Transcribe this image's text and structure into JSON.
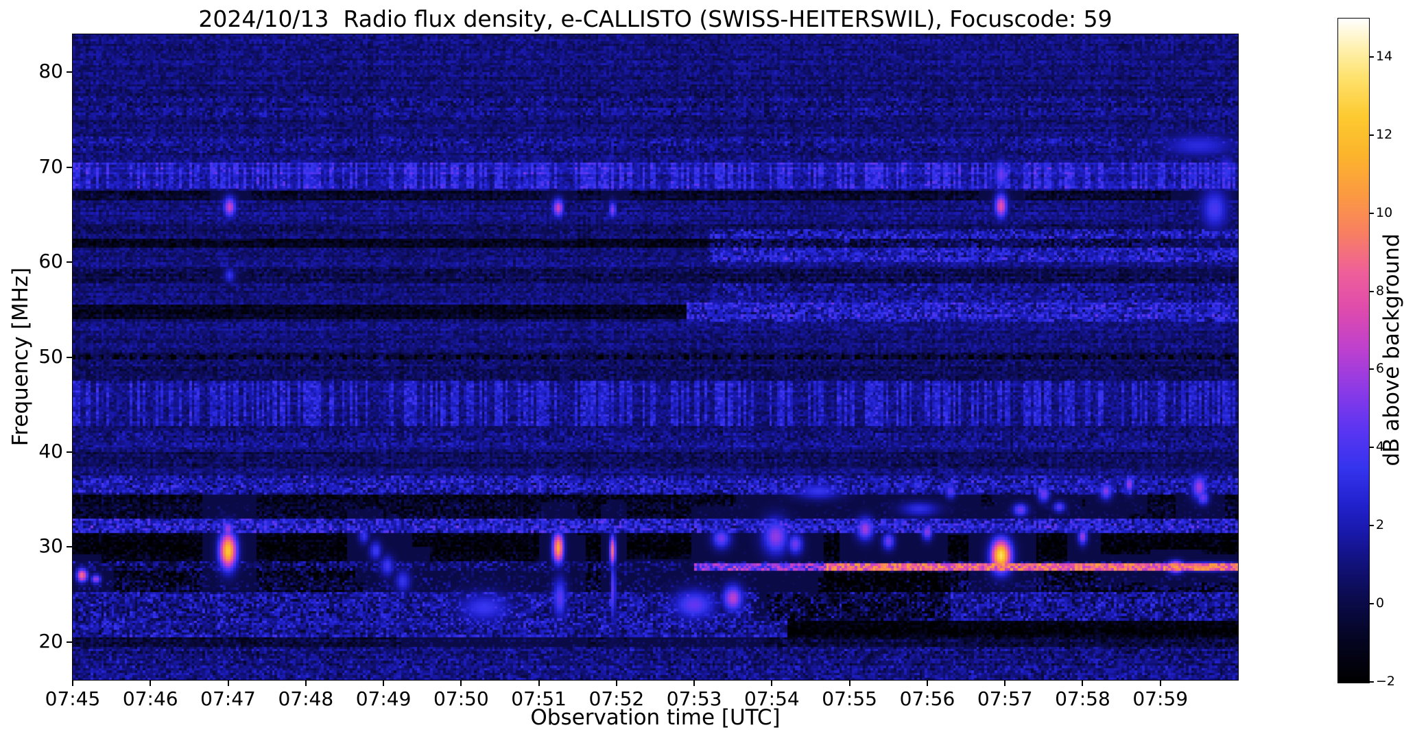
{
  "chart_data": {
    "type": "heatmap",
    "title": "2024/10/13  Radio flux density, e-CALLISTO (SWISS-HEITERSWIL), Focuscode: 59",
    "xlabel": "Observation time [UTC]",
    "ylabel": "Frequency [MHz]",
    "x_ticks": [
      "07:45",
      "07:46",
      "07:47",
      "07:48",
      "07:49",
      "07:50",
      "07:51",
      "07:52",
      "07:53",
      "07:54",
      "07:55",
      "07:56",
      "07:57",
      "07:58",
      "07:59"
    ],
    "x_range_minutes": [
      0,
      15
    ],
    "y_ticks": [
      20,
      30,
      40,
      50,
      60,
      70,
      80
    ],
    "y_range_mhz": [
      16,
      84
    ],
    "grid": {
      "cols": 450,
      "rows": 272
    },
    "colorbar": {
      "label": "dB above background",
      "ticks": [
        -2,
        0,
        2,
        4,
        6,
        8,
        10,
        12,
        14
      ],
      "vmin": -2,
      "vmax": 15,
      "stops": [
        {
          "v": -2,
          "c": "#000000"
        },
        {
          "v": -1,
          "c": "#04041e"
        },
        {
          "v": 0,
          "c": "#0a0a46"
        },
        {
          "v": 1,
          "c": "#111178"
        },
        {
          "v": 1.8,
          "c": "#1818a8"
        },
        {
          "v": 2.6,
          "c": "#2222cf"
        },
        {
          "v": 3.5,
          "c": "#3534ee"
        },
        {
          "v": 4.5,
          "c": "#5c35f2"
        },
        {
          "v": 5.5,
          "c": "#8c3ae6"
        },
        {
          "v": 6.5,
          "c": "#bc40cf"
        },
        {
          "v": 7.5,
          "c": "#dd4aae"
        },
        {
          "v": 8.5,
          "c": "#ee5f99"
        },
        {
          "v": 9.5,
          "c": "#f87f62"
        },
        {
          "v": 10.5,
          "c": "#fb9a41"
        },
        {
          "v": 11.5,
          "c": "#fcb42c"
        },
        {
          "v": 12.5,
          "c": "#fdca30"
        },
        {
          "v": 13.5,
          "c": "#fee26e"
        },
        {
          "v": 14.3,
          "c": "#fff2b5"
        },
        {
          "v": 15,
          "c": "#ffffff"
        }
      ]
    },
    "background": {
      "base_db": 1.0,
      "noise_db": 1.7,
      "row_noise_db": 0.8,
      "col_noise_db": 0.4,
      "seed": 42
    },
    "bands": [
      {
        "f1": 67.8,
        "f2": 70.6,
        "v": 1.2,
        "n": 1.3,
        "dash": true
      },
      {
        "f1": 66.6,
        "f2": 67.6,
        "v": -1.7,
        "n": 0.4
      },
      {
        "f1": 63.0,
        "f2": 64.0,
        "v": -0.6,
        "n": 0.4
      },
      {
        "f1": 61.4,
        "f2": 62.6,
        "v": -2.3,
        "n": 0.4
      },
      {
        "f1": 57.8,
        "f2": 59.2,
        "v": -0.9,
        "n": 0.5
      },
      {
        "f1": 54.0,
        "f2": 55.6,
        "v": -2.0,
        "n": 0.4,
        "t2": 7.9
      },
      {
        "f1": 53.8,
        "f2": 55.8,
        "v": 1.4,
        "n": 1.5,
        "t1": 7.9
      },
      {
        "f1": 60.0,
        "f2": 63.6,
        "v": 1.3,
        "n": 1.4,
        "t1": 8.2
      },
      {
        "f1": 55.8,
        "f2": 57.8,
        "v": 0.5,
        "n": 1.0,
        "t1": 8.2
      },
      {
        "f1": 49.6,
        "f2": 50.4,
        "v": -0.7,
        "n": 0.5
      },
      {
        "f1": 47.6,
        "f2": 49.4,
        "v": -0.5,
        "n": 0.4
      },
      {
        "f1": 42.8,
        "f2": 47.6,
        "v": 0.6,
        "n": 1.2,
        "dash": true
      },
      {
        "f1": 40.6,
        "f2": 42.2,
        "v": 0.2,
        "n": 0.8
      },
      {
        "f1": 38.4,
        "f2": 40.0,
        "v": -0.7,
        "n": 0.4
      },
      {
        "f1": 35.4,
        "f2": 37.4,
        "v": 0.8,
        "n": 1.5
      },
      {
        "f1": 33.0,
        "f2": 35.4,
        "v": -1.9,
        "n": 1.0
      },
      {
        "f1": 31.6,
        "f2": 33.0,
        "v": 1.4,
        "n": 1.7
      },
      {
        "f1": 28.4,
        "f2": 31.6,
        "v": -2.6,
        "n": 0.9
      },
      {
        "f1": 27.4,
        "f2": 28.4,
        "v": -0.5,
        "n": 1.8
      },
      {
        "f1": 27.5,
        "f2": 28.3,
        "v": 5.0,
        "n": 1.5,
        "t1": 8.0,
        "t2": 9.7
      },
      {
        "f1": 25.2,
        "f2": 27.4,
        "v": -1.6,
        "n": 1.8
      },
      {
        "f1": 22.2,
        "f2": 25.2,
        "v": 0.5,
        "n": 1.6
      },
      {
        "f1": 22.3,
        "f2": 27.2,
        "v": -1.6,
        "n": 1.2,
        "t1": 8.8,
        "t2": 11.3
      },
      {
        "f1": 20.6,
        "f2": 22.2,
        "v": 0.7,
        "n": 1.5,
        "t2": 9.2
      },
      {
        "f1": 20.6,
        "f2": 22.2,
        "v": -2.6,
        "n": 0.5,
        "t1": 9.2
      },
      {
        "f1": 19.4,
        "f2": 20.6,
        "v": -1.3,
        "n": 0.6
      },
      {
        "f1": 16.0,
        "f2": 19.4,
        "v": 0.1,
        "n": 1.0
      },
      {
        "f1": 71.4,
        "f2": 73.2,
        "v": 0.3,
        "n": 0.9
      },
      {
        "f1": 75.2,
        "f2": 77.4,
        "v": 0.15,
        "n": 0.8
      }
    ],
    "tick_row_50mhz": {
      "f1": 49.7,
      "f2": 50.3,
      "period_s": 11,
      "width_s": 2.5,
      "v": -3.0
    },
    "bright_line": {
      "f1": 27.6,
      "f2": 28.3,
      "t1": 9.7,
      "t2": 15.0,
      "v": 8.5,
      "n": 2.5
    },
    "blobs": [
      {
        "t": 0.12,
        "f": 27.0,
        "dt": 0.07,
        "df": 0.7,
        "v": 9
      },
      {
        "t": 0.3,
        "f": 26.6,
        "dt": 0.06,
        "df": 0.5,
        "v": 6
      },
      {
        "t": 2.0,
        "f": 29.6,
        "dt": 0.11,
        "df": 1.9,
        "v": 12.5
      },
      {
        "t": 2.0,
        "f": 31.9,
        "dt": 0.08,
        "df": 0.9,
        "v": 6
      },
      {
        "t": 2.02,
        "f": 65.8,
        "dt": 0.08,
        "df": 1.1,
        "v": 7
      },
      {
        "t": 2.02,
        "f": 58.6,
        "dt": 0.07,
        "df": 0.8,
        "v": 3.5
      },
      {
        "t": 3.75,
        "f": 31.2,
        "dt": 0.07,
        "df": 0.9,
        "v": 3.6
      },
      {
        "t": 3.9,
        "f": 29.6,
        "dt": 0.08,
        "df": 1.0,
        "v": 3.8
      },
      {
        "t": 4.05,
        "f": 28.0,
        "dt": 0.09,
        "df": 1.1,
        "v": 3.8
      },
      {
        "t": 4.25,
        "f": 26.4,
        "dt": 0.1,
        "df": 1.2,
        "v": 3.5
      },
      {
        "t": 5.3,
        "f": 23.6,
        "dt": 0.35,
        "df": 1.6,
        "v": 3.6
      },
      {
        "t": 6.25,
        "f": 65.7,
        "dt": 0.07,
        "df": 1.0,
        "v": 7
      },
      {
        "t": 6.25,
        "f": 29.9,
        "dt": 0.07,
        "df": 1.6,
        "v": 11
      },
      {
        "t": 6.27,
        "f": 24.6,
        "dt": 0.09,
        "df": 2.2,
        "v": 4.5
      },
      {
        "t": 6.95,
        "f": 65.5,
        "dt": 0.05,
        "df": 0.9,
        "v": 5.5
      },
      {
        "t": 6.95,
        "f": 29.6,
        "dt": 0.04,
        "df": 1.6,
        "v": 9
      },
      {
        "t": 6.96,
        "f": 25.4,
        "dt": 0.03,
        "df": 3.2,
        "v": 5
      },
      {
        "t": 8.0,
        "f": 23.9,
        "dt": 0.28,
        "df": 1.6,
        "v": 4.6
      },
      {
        "t": 8.5,
        "f": 24.6,
        "dt": 0.13,
        "df": 1.4,
        "v": 6.5
      },
      {
        "t": 8.35,
        "f": 30.9,
        "dt": 0.12,
        "df": 1.1,
        "v": 5
      },
      {
        "t": 9.05,
        "f": 31.1,
        "dt": 0.17,
        "df": 1.9,
        "v": 5.6
      },
      {
        "t": 9.3,
        "f": 30.3,
        "dt": 0.1,
        "df": 1.1,
        "v": 5
      },
      {
        "t": 9.6,
        "f": 35.9,
        "dt": 0.3,
        "df": 0.9,
        "v": 3.5
      },
      {
        "t": 10.2,
        "f": 31.9,
        "dt": 0.11,
        "df": 1.2,
        "v": 6
      },
      {
        "t": 10.5,
        "f": 30.6,
        "dt": 0.08,
        "df": 0.9,
        "v": 5
      },
      {
        "t": 10.9,
        "f": 34.0,
        "dt": 0.25,
        "df": 0.8,
        "v": 3.2
      },
      {
        "t": 11.0,
        "f": 31.6,
        "dt": 0.07,
        "df": 0.9,
        "v": 5.5
      },
      {
        "t": 11.3,
        "f": 35.9,
        "dt": 0.07,
        "df": 0.8,
        "v": 4.5
      },
      {
        "t": 11.95,
        "f": 29.1,
        "dt": 0.13,
        "df": 1.7,
        "v": 13.5
      },
      {
        "t": 11.95,
        "f": 65.9,
        "dt": 0.08,
        "df": 1.3,
        "v": 8
      },
      {
        "t": 11.95,
        "f": 69.2,
        "dt": 0.09,
        "df": 1.6,
        "v": 5
      },
      {
        "t": 12.2,
        "f": 33.9,
        "dt": 0.1,
        "df": 0.7,
        "v": 5
      },
      {
        "t": 12.5,
        "f": 35.6,
        "dt": 0.08,
        "df": 0.9,
        "v": 5
      },
      {
        "t": 12.7,
        "f": 34.2,
        "dt": 0.08,
        "df": 0.6,
        "v": 4.5
      },
      {
        "t": 13.0,
        "f": 31.1,
        "dt": 0.06,
        "df": 0.9,
        "v": 6
      },
      {
        "t": 13.3,
        "f": 35.9,
        "dt": 0.08,
        "df": 0.9,
        "v": 5.5
      },
      {
        "t": 13.6,
        "f": 36.6,
        "dt": 0.06,
        "df": 0.9,
        "v": 6
      },
      {
        "t": 14.2,
        "f": 27.9,
        "dt": 0.1,
        "df": 0.6,
        "v": 11
      },
      {
        "t": 14.6,
        "f": 27.9,
        "dt": 0.45,
        "df": 0.4,
        "v": 10
      },
      {
        "t": 14.5,
        "f": 36.3,
        "dt": 0.1,
        "df": 1.3,
        "v": 6
      },
      {
        "t": 14.55,
        "f": 35.2,
        "dt": 0.08,
        "df": 0.8,
        "v": 5
      },
      {
        "t": 14.7,
        "f": 65.6,
        "dt": 0.18,
        "df": 2.2,
        "v": 4
      },
      {
        "t": 14.5,
        "f": 72.3,
        "dt": 0.5,
        "df": 1.3,
        "v": 3
      },
      {
        "t": 14.85,
        "f": 69.5,
        "dt": 0.12,
        "df": 1.8,
        "v": 3.5
      }
    ]
  }
}
